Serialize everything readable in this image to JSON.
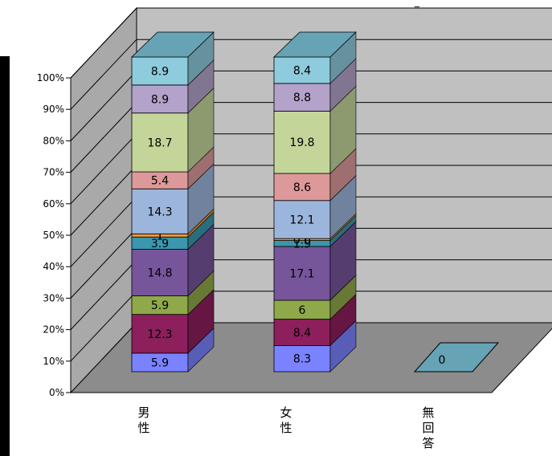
{
  "chart_data": {
    "type": "bar",
    "stacked": true,
    "percent_stacked": true,
    "three_d": true,
    "title": "",
    "xlabel": "",
    "ylabel": "",
    "ylim": [
      0,
      100
    ],
    "y_ticks": [
      "0%",
      "10%",
      "20%",
      "30%",
      "40%",
      "50%",
      "60%",
      "70%",
      "80%",
      "90%",
      "100%"
    ],
    "grid": true,
    "legend": "none",
    "categories": [
      "男性",
      "女性",
      "無回答"
    ],
    "category_glyphs": [
      [
        "男",
        "性"
      ],
      [
        "女",
        "性"
      ],
      [
        "無",
        "回",
        "答"
      ]
    ],
    "series": [
      {
        "color": "#7a82ff",
        "values": [
          5.9,
          8.3,
          0
        ]
      },
      {
        "color": "#8c1f5c",
        "values": [
          12.3,
          8.4,
          null
        ]
      },
      {
        "color": "#8fa84a",
        "values": [
          5.9,
          6,
          null
        ]
      },
      {
        "color": "#76559a",
        "values": [
          14.8,
          17.1,
          null
        ]
      },
      {
        "color": "#3a97ad",
        "values": [
          3.9,
          1.9,
          null
        ]
      },
      {
        "color": "#f19a3a",
        "values": [
          1,
          0.6,
          null
        ]
      },
      {
        "color": "#9cb5dc",
        "values": [
          14.3,
          12.1,
          null
        ]
      },
      {
        "color": "#dd9999",
        "values": [
          5.4,
          8.6,
          null
        ]
      },
      {
        "color": "#c4d59a",
        "values": [
          18.7,
          19.8,
          null
        ]
      },
      {
        "color": "#b3a2c9",
        "values": [
          8.9,
          8.8,
          null
        ]
      },
      {
        "color": "#8ecbdd",
        "values": [
          8.9,
          8.4,
          null
        ]
      }
    ],
    "top_cap_color": "#66a3b5",
    "zero_marker_color": "#66a3b5"
  },
  "truncated_header_glyph": "_"
}
